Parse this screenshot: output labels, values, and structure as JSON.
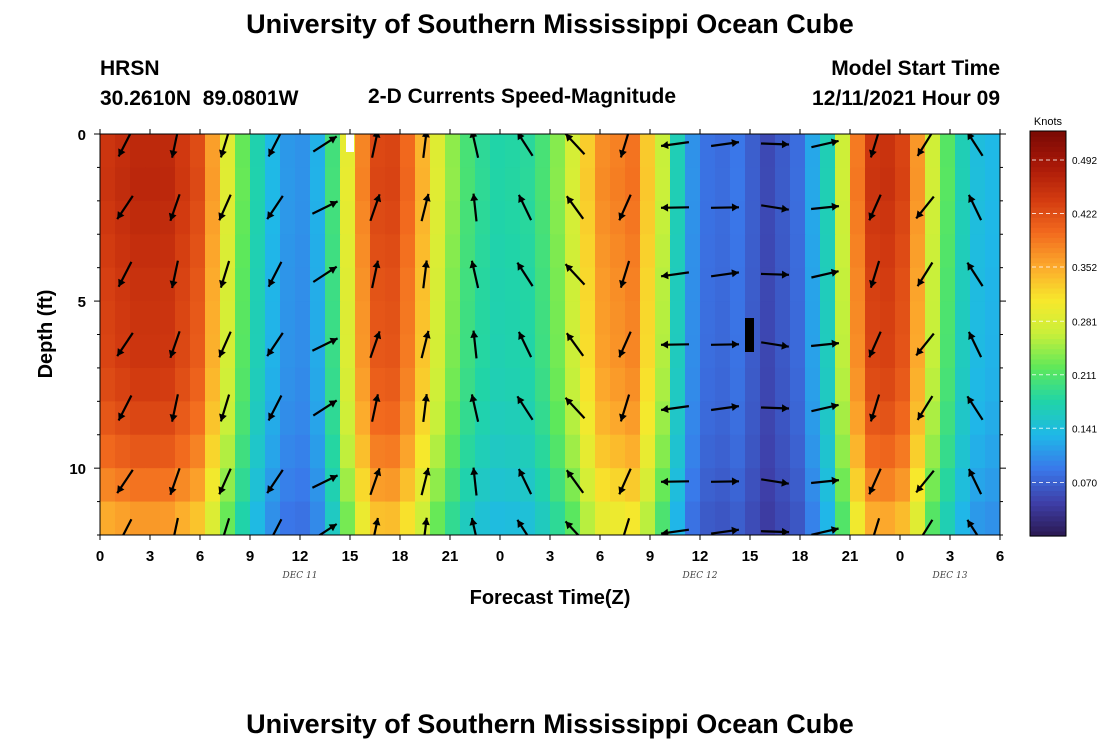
{
  "header": {
    "title": "University of Southern Mississippi Ocean Cube",
    "station": "HRSN",
    "coordinates": "30.2610N  89.0801W",
    "subtitle": "2-D Currents Speed-Magnitude",
    "model_start_label": "Model Start Time",
    "model_start_value": "12/11/2021 Hour 09"
  },
  "footer": {
    "next_title": "University of Southern Mississippi Ocean Cube"
  },
  "chart_data": {
    "type": "heatmap",
    "xlabel": "Forecast Time(Z)",
    "ylabel": "Depth (ft)",
    "x_range_hours": [
      0,
      54
    ],
    "ylim": [
      0,
      12
    ],
    "y_inverted": true,
    "x_tick_labels": [
      "0",
      "3",
      "6",
      "9",
      "12",
      "15",
      "18",
      "21",
      "0",
      "3",
      "6",
      "9",
      "12",
      "15",
      "18",
      "21",
      "0",
      "3",
      "6"
    ],
    "y_tick_labels": [
      "0",
      "5",
      "10"
    ],
    "y_ticks": [
      0,
      5,
      10
    ],
    "date_labels": [
      {
        "text": "DEC 11",
        "hour": 12
      },
      {
        "text": "DEC 12",
        "hour": 36
      },
      {
        "text": "DEC 13",
        "hour": 51
      }
    ],
    "colorbar": {
      "unit": "Knots",
      "range": [
        0,
        0.53
      ],
      "tick_values": [
        0.492,
        0.422,
        0.352,
        0.281,
        0.211,
        0.141,
        0.07
      ],
      "tick_labels": [
        "0.492",
        "0.422",
        "0.352",
        "0.281",
        "0.211",
        "0.141",
        "0.070"
      ],
      "colors": [
        "#2a1850",
        "#3e3fa8",
        "#3a78ea",
        "#1fb8e8",
        "#20d4a8",
        "#5ee85a",
        "#c8f03a",
        "#f7e82c",
        "#fca92c",
        "#f26a1e",
        "#d23a10",
        "#a81808",
        "#7a0a04"
      ]
    },
    "speed_profile": {
      "hours": [
        0,
        2,
        4,
        6,
        7,
        8,
        9,
        10,
        11,
        12,
        13,
        14,
        15,
        16,
        17,
        18,
        19,
        20,
        21,
        22,
        23,
        24,
        26,
        28,
        30,
        32,
        34,
        35,
        36,
        37,
        38,
        40,
        42,
        44,
        45,
        46,
        47,
        48,
        49,
        50,
        51,
        52,
        53,
        54
      ],
      "knots": [
        0.43,
        0.45,
        0.45,
        0.41,
        0.33,
        0.25,
        0.19,
        0.14,
        0.11,
        0.1,
        0.12,
        0.2,
        0.3,
        0.39,
        0.43,
        0.41,
        0.36,
        0.29,
        0.24,
        0.2,
        0.18,
        0.17,
        0.18,
        0.25,
        0.36,
        0.38,
        0.24,
        0.12,
        0.09,
        0.07,
        0.09,
        0.05,
        0.08,
        0.18,
        0.33,
        0.43,
        0.44,
        0.43,
        0.36,
        0.26,
        0.2,
        0.15,
        0.13,
        0.13
      ]
    },
    "depth_factor": {
      "depth_ft": [
        0,
        1,
        2,
        3,
        4,
        5,
        6,
        7,
        8,
        9,
        10,
        11,
        12
      ],
      "factor": [
        1.02,
        1.04,
        1.03,
        1.02,
        1.01,
        1.0,
        1.0,
        0.99,
        0.97,
        0.94,
        0.9,
        0.84,
        0.78
      ]
    },
    "vector_rows_depth_ft": [
      0.3,
      2.2,
      4.2,
      6.3,
      8.2,
      10.4,
      11.9
    ],
    "vector_cols_hour": [
      1.5,
      4.5,
      7.5,
      10.5,
      13.5,
      16.5,
      19.5,
      22.5,
      25.5,
      28.5,
      31.5,
      34.5,
      37.5,
      40.5,
      43.5,
      46.5,
      49.5,
      52.5
    ],
    "vector_direction_deg_by_col": [
      210,
      195,
      200,
      210,
      60,
      15,
      10,
      350,
      330,
      320,
      200,
      265,
      85,
      95,
      80,
      200,
      215,
      330
    ]
  }
}
